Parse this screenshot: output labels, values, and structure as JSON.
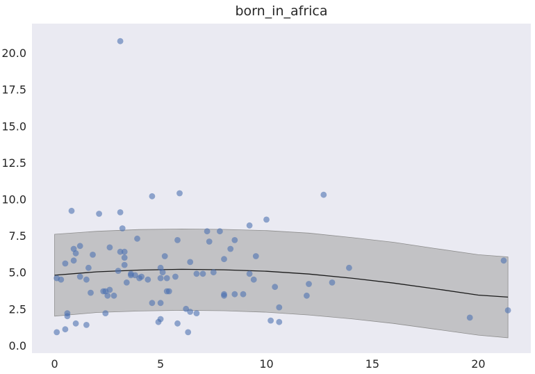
{
  "chart_data": {
    "type": "scatter",
    "title": "born_in_africa",
    "xlabel": "",
    "ylabel": "",
    "xlim": [
      -1.07,
      22.48
    ],
    "ylim": [
      -0.53,
      22.0
    ],
    "grid": false,
    "colors": {
      "background": "#eaeaf2",
      "points": "#4c72b0",
      "fit_line": "#1a1a1a",
      "band": "#a9a9a9"
    },
    "x_ticks": [
      {
        "value": 0,
        "label": "0"
      },
      {
        "value": 5,
        "label": "5"
      },
      {
        "value": 10,
        "label": "10"
      },
      {
        "value": 15,
        "label": "15"
      },
      {
        "value": 20,
        "label": "20"
      }
    ],
    "y_ticks": [
      {
        "value": 0.0,
        "label": "0.0"
      },
      {
        "value": 2.5,
        "label": "2.5"
      },
      {
        "value": 5.0,
        "label": "5.0"
      },
      {
        "value": 7.5,
        "label": "7.5"
      },
      {
        "value": 10.0,
        "label": "10.0"
      },
      {
        "value": 12.5,
        "label": "12.5"
      },
      {
        "value": 15.0,
        "label": "15.0"
      },
      {
        "value": 17.5,
        "label": "17.5"
      },
      {
        "value": 20.0,
        "label": "20.0"
      }
    ],
    "fit": {
      "x": [
        0,
        2,
        4,
        6,
        8,
        10,
        12,
        14,
        16,
        18,
        20,
        21.4
      ],
      "y": [
        4.8,
        5.03,
        5.15,
        5.2,
        5.17,
        5.07,
        4.88,
        4.6,
        4.26,
        3.86,
        3.44,
        3.3
      ],
      "lower": [
        2.0,
        2.25,
        2.35,
        2.4,
        2.37,
        2.27,
        2.08,
        1.82,
        1.5,
        1.1,
        0.7,
        0.52
      ],
      "upper": [
        7.6,
        7.8,
        7.92,
        7.96,
        7.93,
        7.85,
        7.68,
        7.38,
        7.05,
        6.62,
        6.2,
        6.05
      ]
    },
    "points": [
      {
        "x": 0.1,
        "y": 0.9
      },
      {
        "x": 0.1,
        "y": 4.6
      },
      {
        "x": 0.3,
        "y": 4.5
      },
      {
        "x": 0.5,
        "y": 1.1
      },
      {
        "x": 0.5,
        "y": 5.6
      },
      {
        "x": 0.6,
        "y": 2.0
      },
      {
        "x": 0.6,
        "y": 2.2
      },
      {
        "x": 0.8,
        "y": 9.2
      },
      {
        "x": 0.9,
        "y": 6.6
      },
      {
        "x": 0.9,
        "y": 5.8
      },
      {
        "x": 1.0,
        "y": 6.3
      },
      {
        "x": 1.0,
        "y": 1.5
      },
      {
        "x": 1.2,
        "y": 4.7
      },
      {
        "x": 1.2,
        "y": 6.8
      },
      {
        "x": 1.5,
        "y": 1.4
      },
      {
        "x": 1.5,
        "y": 4.5
      },
      {
        "x": 1.6,
        "y": 5.3
      },
      {
        "x": 1.7,
        "y": 3.6
      },
      {
        "x": 1.8,
        "y": 6.2
      },
      {
        "x": 2.1,
        "y": 9.0
      },
      {
        "x": 2.3,
        "y": 3.7
      },
      {
        "x": 2.4,
        "y": 2.2
      },
      {
        "x": 2.4,
        "y": 3.7
      },
      {
        "x": 2.5,
        "y": 3.4
      },
      {
        "x": 2.6,
        "y": 3.8
      },
      {
        "x": 2.6,
        "y": 6.7
      },
      {
        "x": 2.8,
        "y": 3.4
      },
      {
        "x": 3.0,
        "y": 5.1
      },
      {
        "x": 3.1,
        "y": 6.4
      },
      {
        "x": 3.1,
        "y": 9.1
      },
      {
        "x": 3.1,
        "y": 20.8
      },
      {
        "x": 3.2,
        "y": 8.0
      },
      {
        "x": 3.3,
        "y": 5.5
      },
      {
        "x": 3.3,
        "y": 6.4
      },
      {
        "x": 3.3,
        "y": 6.0
      },
      {
        "x": 3.4,
        "y": 4.3
      },
      {
        "x": 3.6,
        "y": 4.9
      },
      {
        "x": 3.6,
        "y": 4.8
      },
      {
        "x": 3.8,
        "y": 4.8
      },
      {
        "x": 3.9,
        "y": 7.3
      },
      {
        "x": 4.0,
        "y": 4.6
      },
      {
        "x": 4.1,
        "y": 4.7
      },
      {
        "x": 4.4,
        "y": 4.5
      },
      {
        "x": 4.6,
        "y": 2.9
      },
      {
        "x": 4.6,
        "y": 10.2
      },
      {
        "x": 4.9,
        "y": 1.6
      },
      {
        "x": 5.0,
        "y": 1.8
      },
      {
        "x": 5.0,
        "y": 2.9
      },
      {
        "x": 5.0,
        "y": 4.6
      },
      {
        "x": 5.0,
        "y": 5.3
      },
      {
        "x": 5.1,
        "y": 5.0
      },
      {
        "x": 5.2,
        "y": 6.1
      },
      {
        "x": 5.3,
        "y": 4.6
      },
      {
        "x": 5.3,
        "y": 3.7
      },
      {
        "x": 5.4,
        "y": 3.7
      },
      {
        "x": 5.7,
        "y": 4.7
      },
      {
        "x": 5.8,
        "y": 1.5
      },
      {
        "x": 5.8,
        "y": 7.2
      },
      {
        "x": 5.9,
        "y": 10.4
      },
      {
        "x": 6.2,
        "y": 2.5
      },
      {
        "x": 6.3,
        "y": 0.9
      },
      {
        "x": 6.4,
        "y": 2.3
      },
      {
        "x": 6.4,
        "y": 5.7
      },
      {
        "x": 6.7,
        "y": 2.2
      },
      {
        "x": 6.7,
        "y": 4.9
      },
      {
        "x": 7.0,
        "y": 4.9
      },
      {
        "x": 7.2,
        "y": 7.8
      },
      {
        "x": 7.3,
        "y": 7.1
      },
      {
        "x": 7.5,
        "y": 5.0
      },
      {
        "x": 7.8,
        "y": 7.8
      },
      {
        "x": 8.0,
        "y": 3.5
      },
      {
        "x": 8.0,
        "y": 5.9
      },
      {
        "x": 8.0,
        "y": 3.4
      },
      {
        "x": 8.3,
        "y": 6.6
      },
      {
        "x": 8.5,
        "y": 7.2
      },
      {
        "x": 8.5,
        "y": 3.5
      },
      {
        "x": 8.9,
        "y": 3.5
      },
      {
        "x": 9.2,
        "y": 4.9
      },
      {
        "x": 9.2,
        "y": 8.2
      },
      {
        "x": 9.4,
        "y": 4.5
      },
      {
        "x": 9.5,
        "y": 6.1
      },
      {
        "x": 10.0,
        "y": 8.6
      },
      {
        "x": 10.2,
        "y": 1.7
      },
      {
        "x": 10.4,
        "y": 4.0
      },
      {
        "x": 10.6,
        "y": 1.6
      },
      {
        "x": 10.6,
        "y": 2.6
      },
      {
        "x": 11.9,
        "y": 3.4
      },
      {
        "x": 12.0,
        "y": 4.2
      },
      {
        "x": 12.7,
        "y": 10.3
      },
      {
        "x": 13.1,
        "y": 4.3
      },
      {
        "x": 13.9,
        "y": 5.3
      },
      {
        "x": 19.6,
        "y": 1.9
      },
      {
        "x": 21.2,
        "y": 5.8
      },
      {
        "x": 21.4,
        "y": 2.4
      }
    ]
  }
}
